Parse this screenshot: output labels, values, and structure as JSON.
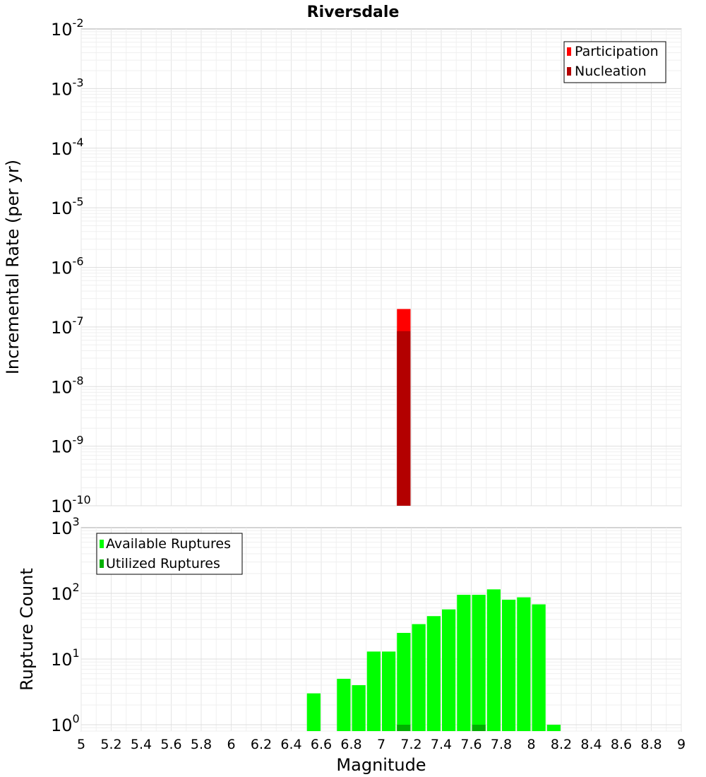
{
  "chart_data": [
    {
      "type": "bar",
      "title": "Riversdale",
      "xlabel": "",
      "ylabel": "Incremental Rate (per yr)",
      "yscale": "log",
      "xlim": [
        5,
        9
      ],
      "ylim": [
        1e-10,
        0.01
      ],
      "grid": true,
      "legend_position": "top-right",
      "y_tick_labels": [
        {
          "base": "10",
          "exp": "-2"
        },
        {
          "base": "10",
          "exp": "-3"
        },
        {
          "base": "10",
          "exp": "-4"
        },
        {
          "base": "10",
          "exp": "-5"
        },
        {
          "base": "10",
          "exp": "-6"
        },
        {
          "base": "10",
          "exp": "-7"
        },
        {
          "base": "10",
          "exp": "-8"
        },
        {
          "base": "10",
          "exp": "-9"
        },
        {
          "base": "10",
          "exp": "-10"
        }
      ],
      "series": [
        {
          "name": "Participation",
          "color": "#ff0000",
          "x": [
            7.15
          ],
          "values": [
            2e-07
          ]
        },
        {
          "name": "Nucleation",
          "color": "#b30000",
          "x": [
            7.15
          ],
          "values": [
            8.5e-08
          ]
        }
      ]
    },
    {
      "type": "bar",
      "xlabel": "Magnitude",
      "ylabel": "Rupture Count",
      "yscale": "log",
      "xlim": [
        5,
        9
      ],
      "ylim": [
        0.8,
        1000
      ],
      "grid": true,
      "legend_position": "top-left",
      "x_tick_labels": [
        "5",
        "5.2",
        "5.4",
        "5.6",
        "5.8",
        "6",
        "6.2",
        "6.4",
        "6.6",
        "6.8",
        "7",
        "7.2",
        "7.4",
        "7.6",
        "7.8",
        "8",
        "8.2",
        "8.4",
        "8.6",
        "8.8",
        "9"
      ],
      "y_tick_labels": [
        {
          "base": "10",
          "exp": "3"
        },
        {
          "base": "10",
          "exp": "2"
        },
        {
          "base": "10",
          "exp": "1"
        },
        {
          "base": "10",
          "exp": "0"
        }
      ],
      "series": [
        {
          "name": "Available Ruptures",
          "color": "#00ff00",
          "x": [
            6.55,
            6.75,
            6.85,
            6.95,
            7.05,
            7.15,
            7.25,
            7.35,
            7.45,
            7.55,
            7.65,
            7.75,
            7.85,
            7.95,
            8.05,
            8.15
          ],
          "values": [
            3,
            5,
            4,
            13,
            13,
            25,
            34,
            45,
            57,
            95,
            95,
            115,
            80,
            87,
            68,
            1
          ]
        },
        {
          "name": "Utilized Ruptures",
          "color": "#00b000",
          "x": [
            7.15,
            7.65
          ],
          "values": [
            1,
            1
          ]
        }
      ]
    }
  ]
}
